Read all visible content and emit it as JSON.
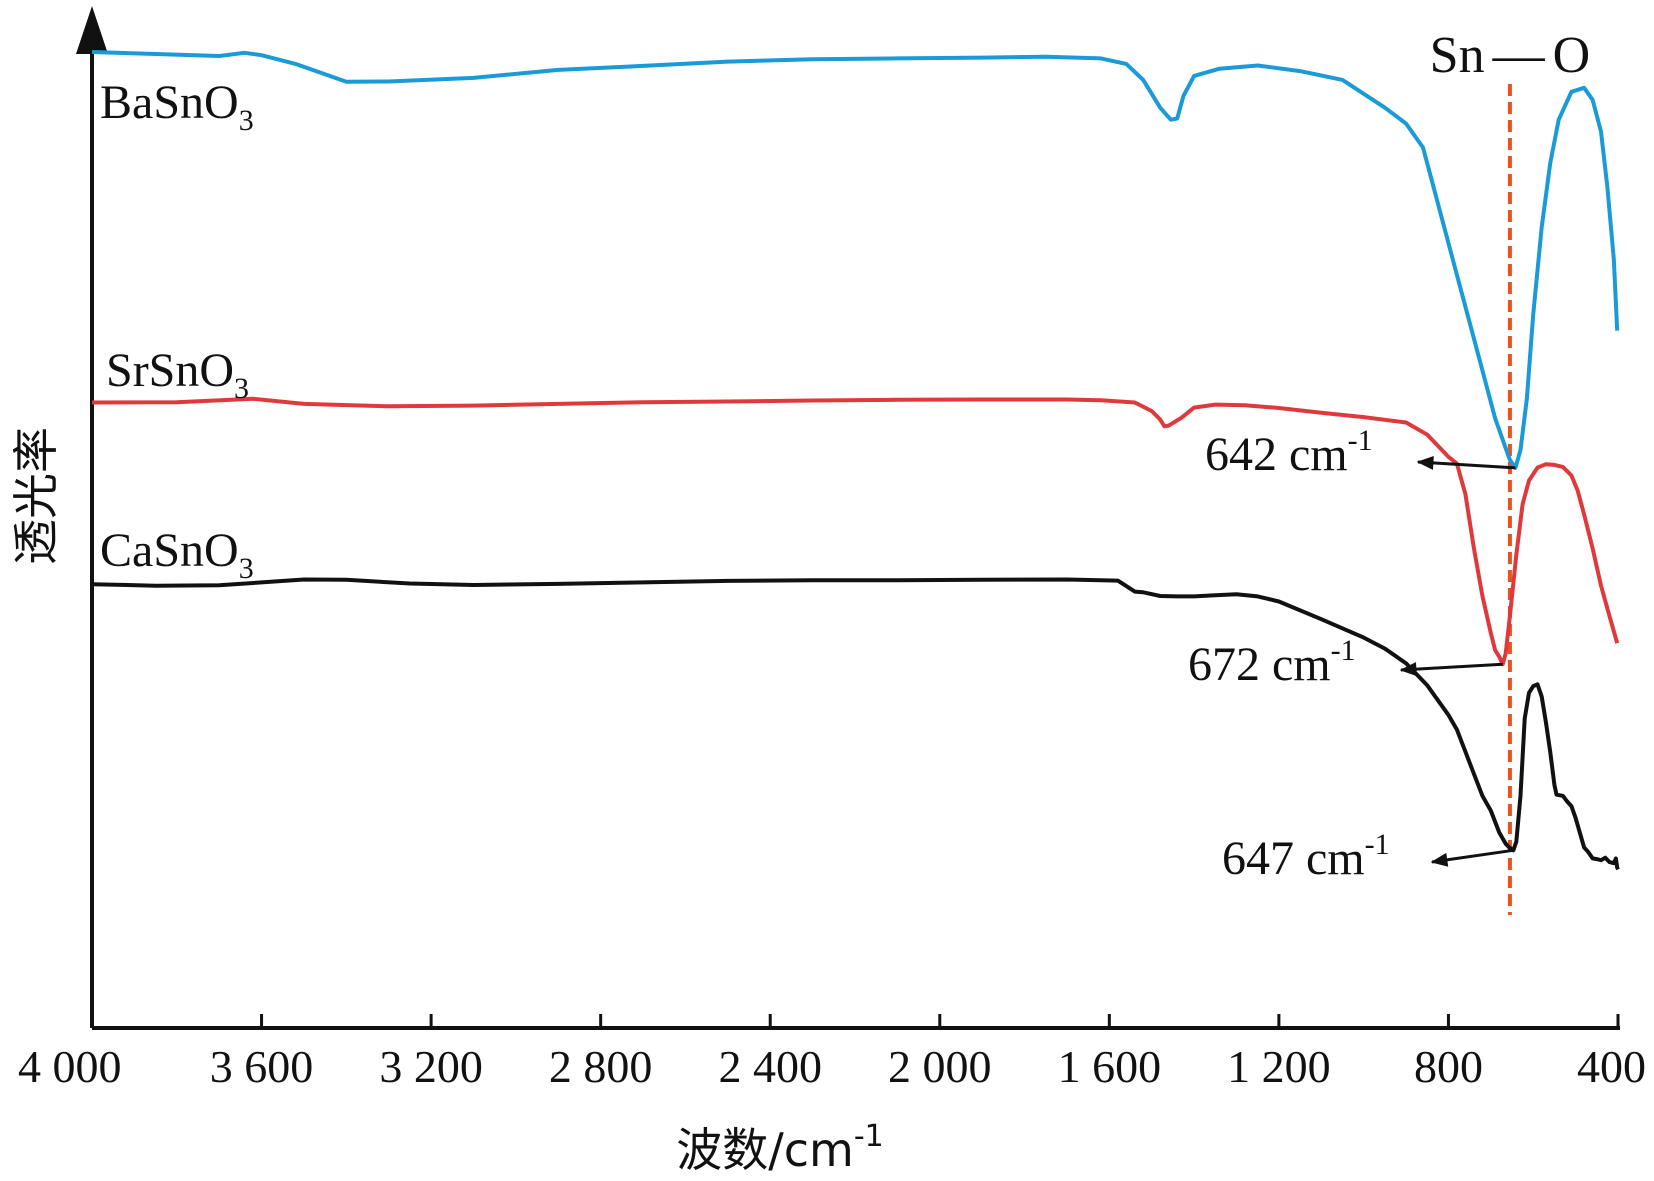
{
  "chart_data": {
    "type": "line",
    "title": "",
    "xlabel": "波数/cm",
    "xlabel_sup": "-1",
    "ylabel": "透光率",
    "xlim": [
      4000,
      400
    ],
    "x_reversed": true,
    "y_ticks_shown": false,
    "xticks": [
      {
        "value": 4000,
        "label": "4 000"
      },
      {
        "value": 3600,
        "label": "3 600"
      },
      {
        "value": 3200,
        "label": "3 200"
      },
      {
        "value": 2800,
        "label": "2 800"
      },
      {
        "value": 2400,
        "label": "2 400"
      },
      {
        "value": 2000,
        "label": "2 000"
      },
      {
        "value": 1600,
        "label": "1 600"
      },
      {
        "value": 1200,
        "label": "1 200"
      },
      {
        "value": 800,
        "label": "800"
      },
      {
        "value": 400,
        "label": "400"
      }
    ],
    "reference_line": {
      "label_left": "Sn",
      "label_right": "O",
      "x": 655,
      "color": "#e8531e"
    },
    "series": [
      {
        "name": "BaSnO",
        "name_sub": "3",
        "color": "#1a9ad6",
        "x": [
          4000,
          3850,
          3700,
          3640,
          3600,
          3520,
          3400,
          3300,
          3100,
          2900,
          2700,
          2500,
          2300,
          2100,
          1900,
          1750,
          1620,
          1560,
          1520,
          1480,
          1455,
          1440,
          1425,
          1400,
          1340,
          1250,
          1150,
          1050,
          950,
          900,
          860,
          840,
          800,
          760,
          720,
          690,
          670,
          655,
          642,
          630,
          615,
          600,
          580,
          560,
          540,
          510,
          480,
          460,
          440,
          425,
          410,
          402
        ],
        "y": [
          100,
          99.5,
          99,
          99.8,
          99.2,
          97,
          92.5,
          92.6,
          93.5,
          95.5,
          96.5,
          97.6,
          98.2,
          98.4,
          98.6,
          98.8,
          98.4,
          97,
          93,
          86,
          83,
          83.3,
          89,
          94,
          95.8,
          96.6,
          95.2,
          93,
          86,
          82,
          76,
          68,
          52,
          36,
          20,
          8,
          2,
          -2.5,
          -4.5,
          0,
          13,
          34,
          56,
          72,
          83,
          90,
          91,
          88,
          80,
          66,
          48,
          30
        ]
      },
      {
        "name": "SrSnO",
        "name_sub": "3",
        "color": "#e0393c",
        "x": [
          4000,
          3800,
          3620,
          3500,
          3300,
          3100,
          2900,
          2700,
          2500,
          2300,
          2100,
          1900,
          1700,
          1620,
          1540,
          1500,
          1480,
          1470,
          1460,
          1430,
          1400,
          1350,
          1280,
          1200,
          1100,
          1000,
          900,
          850,
          800,
          780,
          760,
          740,
          720,
          700,
          690,
          680,
          672,
          665,
          655,
          640,
          625,
          610,
          590,
          570,
          550,
          530,
          510,
          495,
          480,
          460,
          440,
          420,
          402
        ],
        "y": [
          73,
          73.1,
          74.1,
          72.6,
          71.9,
          72.1,
          72.6,
          73.1,
          73.3,
          73.6,
          73.8,
          73.9,
          73.9,
          73.7,
          73,
          70.5,
          68,
          66,
          66.2,
          68.5,
          71.5,
          72.4,
          72.2,
          71.4,
          70,
          68.7,
          67.1,
          63.5,
          57,
          55,
          46,
          30,
          16,
          5,
          0,
          -2,
          -4.2,
          -1,
          10,
          28,
          43,
          50,
          53.8,
          54.8,
          54.6,
          54,
          51.5,
          47,
          40,
          30,
          19,
          10,
          2
        ]
      },
      {
        "name": "CaSnO",
        "name_sub": "3",
        "color": "#111111",
        "x": [
          4000,
          3850,
          3700,
          3600,
          3500,
          3400,
          3250,
          3100,
          2900,
          2700,
          2500,
          2300,
          2100,
          1900,
          1700,
          1620,
          1580,
          1560,
          1540,
          1520,
          1480,
          1440,
          1400,
          1350,
          1300,
          1250,
          1200,
          1100,
          1000,
          950,
          900,
          850,
          800,
          780,
          760,
          740,
          720,
          700,
          680,
          665,
          655,
          647,
          640,
          630,
          620,
          610,
          600,
          590,
          580,
          570,
          560,
          550,
          545,
          530,
          520,
          510,
          500,
          490,
          480,
          470,
          460,
          450,
          440,
          430,
          420,
          410,
          405,
          402,
          400
        ],
        "y": [
          69.5,
          69.1,
          69.2,
          70,
          70.8,
          70.7,
          69.7,
          69.3,
          69.6,
          70,
          70.4,
          70.6,
          70.6,
          70.7,
          70.8,
          70.6,
          70.5,
          69,
          67.5,
          67.3,
          66.3,
          66.2,
          66.2,
          66.5,
          66.8,
          66.2,
          64.8,
          60,
          55,
          52,
          48,
          42,
          34,
          30,
          24,
          18,
          12,
          8,
          2,
          -1,
          -2.2,
          -2.8,
          -0.5,
          12,
          33,
          40,
          41.8,
          42.3,
          39,
          32,
          24,
          15,
          12.3,
          12,
          10.5,
          9.2,
          6,
          2,
          -2,
          -3.3,
          -5,
          -5.2,
          -5.5,
          -4.8,
          -6,
          -6.3,
          -5,
          -7.5,
          -8
        ]
      }
    ],
    "annotations": [
      {
        "text": "642 cm",
        "sup": "-1",
        "series": 0,
        "x": 642
      },
      {
        "text": "672 cm",
        "sup": "-1",
        "series": 1,
        "x": 672
      },
      {
        "text": "647 cm",
        "sup": "-1",
        "series": 2,
        "x": 647
      }
    ]
  }
}
